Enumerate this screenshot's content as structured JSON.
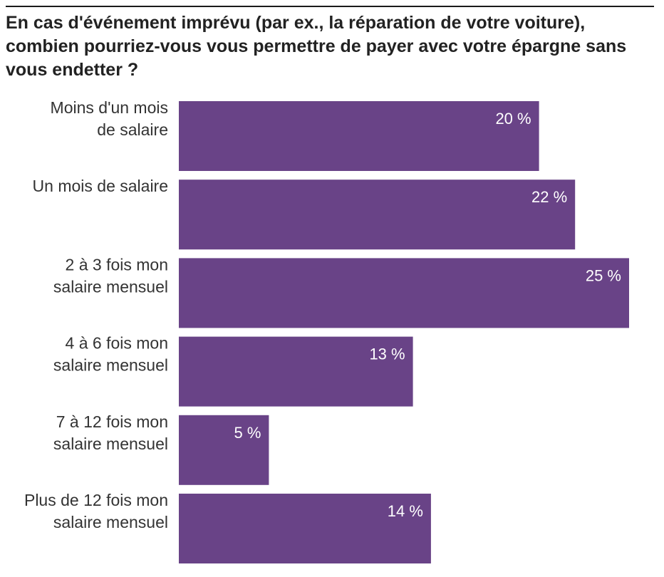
{
  "chart_data": {
    "type": "bar",
    "orientation": "horizontal",
    "title": "En cas d'événement imprévu (par ex., la réparation de votre voiture), combien pourriez-vous vous permettre de payer avec votre épargne sans vous endetter ?",
    "categories": [
      [
        "Moins d'un mois",
        "de salaire"
      ],
      [
        "Un mois de salaire"
      ],
      [
        "2 à 3 fois mon",
        "salaire mensuel"
      ],
      [
        "4 à 6 fois mon",
        "salaire mensuel"
      ],
      [
        "7 à 12 fois mon",
        "salaire mensuel"
      ],
      [
        "Plus de 12  fois mon",
        "salaire mensuel"
      ]
    ],
    "values": [
      20,
      22,
      25,
      13,
      5,
      14
    ],
    "value_labels": [
      "20 %",
      "22 %",
      "25 %",
      "13 %",
      "5 %",
      "14 %"
    ],
    "bar_color": "#694387",
    "xlim": [
      0,
      25
    ],
    "xlabel": "",
    "ylabel": "",
    "grid": false
  }
}
